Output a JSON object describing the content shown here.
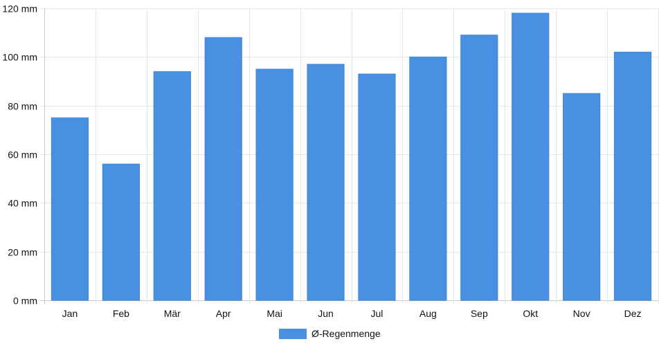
{
  "chart_data": {
    "type": "bar",
    "categories": [
      "Jan",
      "Feb",
      "Mär",
      "Apr",
      "Mai",
      "Jun",
      "Jul",
      "Aug",
      "Sep",
      "Okt",
      "Nov",
      "Dez"
    ],
    "series": [
      {
        "name": "Ø-Regenmenge",
        "values": [
          75,
          56,
          94,
          108,
          95,
          97,
          93,
          100,
          109,
          118,
          85,
          102
        ],
        "color": "#4a90e2"
      }
    ],
    "y_ticks": [
      "0 mm",
      "20 mm",
      "40 mm",
      "60 mm",
      "80 mm",
      "100 mm",
      "120 mm"
    ],
    "ylim": [
      0,
      120
    ],
    "y_step": 20,
    "grid": true,
    "legend_position": "bottom-center"
  }
}
